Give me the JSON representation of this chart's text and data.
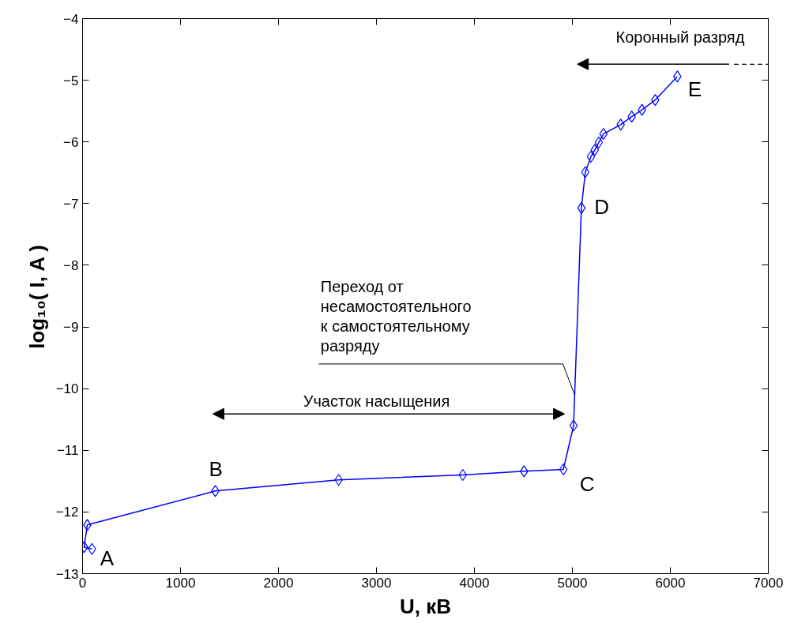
{
  "chart_data": {
    "type": "line",
    "xlabel": "U, кВ",
    "ylabel": "log₁₀( I, A )",
    "x": [
      96,
      16,
      48,
      1355,
      2614,
      3881,
      4507,
      4908,
      5012,
      5092,
      5132,
      5189,
      5229,
      5269,
      5317,
      5493,
      5606,
      5710,
      5846,
      6071
    ],
    "series": [
      {
        "color": "#0000ff",
        "values": [
          -12.6,
          -12.57,
          -12.21,
          -11.66,
          -11.48,
          -11.4,
          -11.34,
          -11.31,
          -10.6,
          -7.07,
          -6.49,
          -6.24,
          -6.13,
          -6.01,
          -5.87,
          -5.72,
          -5.59,
          -5.48,
          -5.32,
          -4.94
        ]
      }
    ],
    "marker": "diamond",
    "line_style": "solid",
    "grid": false,
    "xlim": [
      0,
      7000
    ],
    "xticks": [
      0,
      1000,
      2000,
      3000,
      4000,
      5000,
      6000,
      7000
    ],
    "ylim": [
      -13,
      -4
    ],
    "yticks": [
      -13,
      -12,
      -11,
      -10,
      -9,
      -8,
      -7,
      -6,
      -5,
      -4
    ],
    "annotations": [
      "A",
      "B",
      "C",
      "D",
      "E",
      "Участок насыщения",
      "Коронный разряд",
      {
        "text": "Переход от\nнесамостоятельного\nк самостоятельному\nразряду",
        "x": 5023,
        "y": -10.1
      }
    ]
  }
}
